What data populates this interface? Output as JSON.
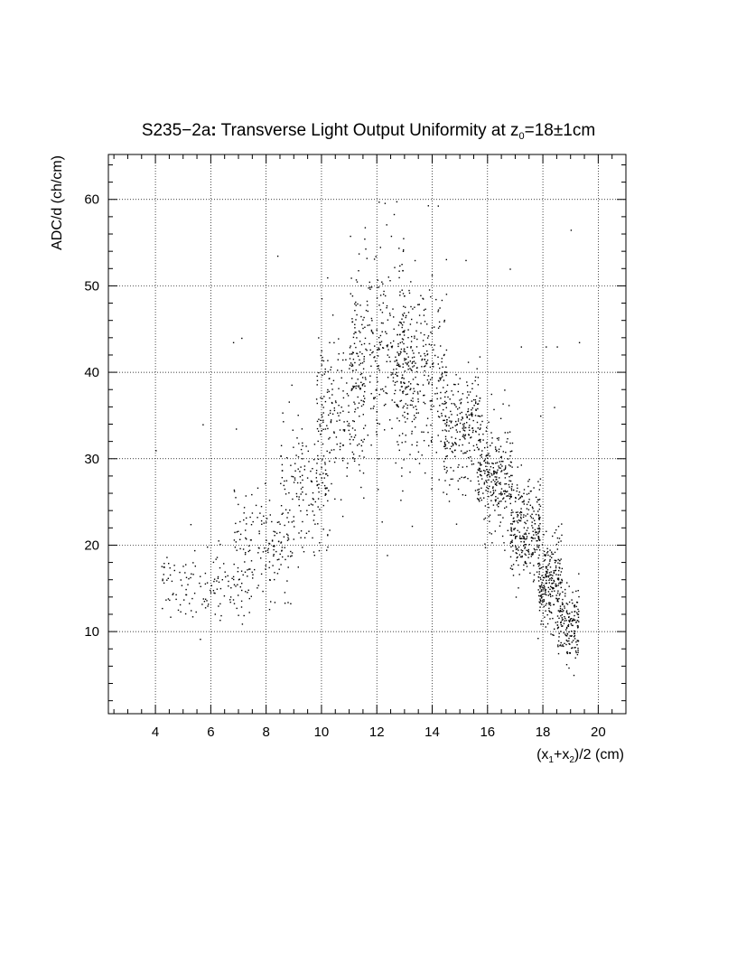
{
  "chart_data": {
    "type": "scatter",
    "title": {
      "prefix": "S235−2a",
      "colon": ":",
      "middle": " Transverse Light Output Uniformity at z",
      "sub": "0",
      "suffix": "=18±1cm"
    },
    "xlabel": {
      "p1": "(x",
      "s1": "1",
      "p2": "+x",
      "s2": "2",
      "p3": ")/2 (cm)"
    },
    "ylabel": "ADC/d (ch/cm)",
    "xlim": [
      2.3,
      21.0
    ],
    "ylim": [
      0.5,
      65.2
    ],
    "x_ticks": [
      4,
      6,
      8,
      10,
      12,
      14,
      16,
      18,
      20
    ],
    "x_tick_labels": [
      "4",
      "6",
      "8",
      "10",
      "12",
      "14",
      "16",
      "18",
      "20"
    ],
    "y_ticks": [
      10,
      20,
      30,
      40,
      50,
      60
    ],
    "y_tick_labels": [
      "10",
      "20",
      "30",
      "40",
      "50",
      "60"
    ],
    "grid": true,
    "marker_color": "#000000",
    "distribution": [
      {
        "x_range": [
          4.2,
          7.5
        ],
        "y_center": 15.5,
        "y_sd": 2.3,
        "count": 140
      },
      {
        "x_range": [
          6.8,
          9.0
        ],
        "y_center": 20.0,
        "y_sd": 3.2,
        "count": 150
      },
      {
        "x_range": [
          8.5,
          10.3
        ],
        "y_center": 27.0,
        "y_sd": 3.6,
        "count": 160
      },
      {
        "x_range": [
          9.8,
          11.6
        ],
        "y_center": 36.0,
        "y_sd": 4.2,
        "count": 200
      },
      {
        "x_range": [
          11.0,
          13.0
        ],
        "y_center": 43.0,
        "y_sd": 6.0,
        "count": 320
      },
      {
        "x_range": [
          12.8,
          14.5
        ],
        "y_center": 40.0,
        "y_sd": 5.5,
        "count": 300
      },
      {
        "x_range": [
          14.4,
          15.8
        ],
        "y_center": 33.5,
        "y_sd": 3.5,
        "count": 240
      },
      {
        "x_range": [
          15.6,
          16.9
        ],
        "y_center": 27.5,
        "y_sd": 3.0,
        "count": 260
      },
      {
        "x_range": [
          16.8,
          17.9
        ],
        "y_center": 21.5,
        "y_sd": 2.8,
        "count": 260
      },
      {
        "x_range": [
          17.8,
          18.7
        ],
        "y_center": 16.0,
        "y_sd": 2.6,
        "count": 250
      },
      {
        "x_range": [
          18.5,
          19.3
        ],
        "y_center": 11.0,
        "y_sd": 2.2,
        "count": 170
      }
    ],
    "outliers": [
      {
        "x": 4.0,
        "y": 31.0
      },
      {
        "x": 4.3,
        "y": 17.5
      },
      {
        "x": 6.8,
        "y": 43.5
      },
      {
        "x": 6.9,
        "y": 33.5
      },
      {
        "x": 7.1,
        "y": 44.0
      },
      {
        "x": 5.7,
        "y": 34.0
      },
      {
        "x": 8.4,
        "y": 53.5
      },
      {
        "x": 10.2,
        "y": 51.0
      },
      {
        "x": 12.7,
        "y": 59.8
      },
      {
        "x": 14.2,
        "y": 59.3
      },
      {
        "x": 15.2,
        "y": 53.0
      },
      {
        "x": 16.8,
        "y": 52.0
      },
      {
        "x": 17.2,
        "y": 43.0
      },
      {
        "x": 18.1,
        "y": 43.0
      },
      {
        "x": 18.5,
        "y": 43.0
      },
      {
        "x": 19.0,
        "y": 56.5
      },
      {
        "x": 19.3,
        "y": 43.5
      },
      {
        "x": 19.1,
        "y": 5.0
      },
      {
        "x": 18.4,
        "y": 36.0
      },
      {
        "x": 16.6,
        "y": 38.0
      },
      {
        "x": 17.9,
        "y": 35.0
      }
    ]
  }
}
